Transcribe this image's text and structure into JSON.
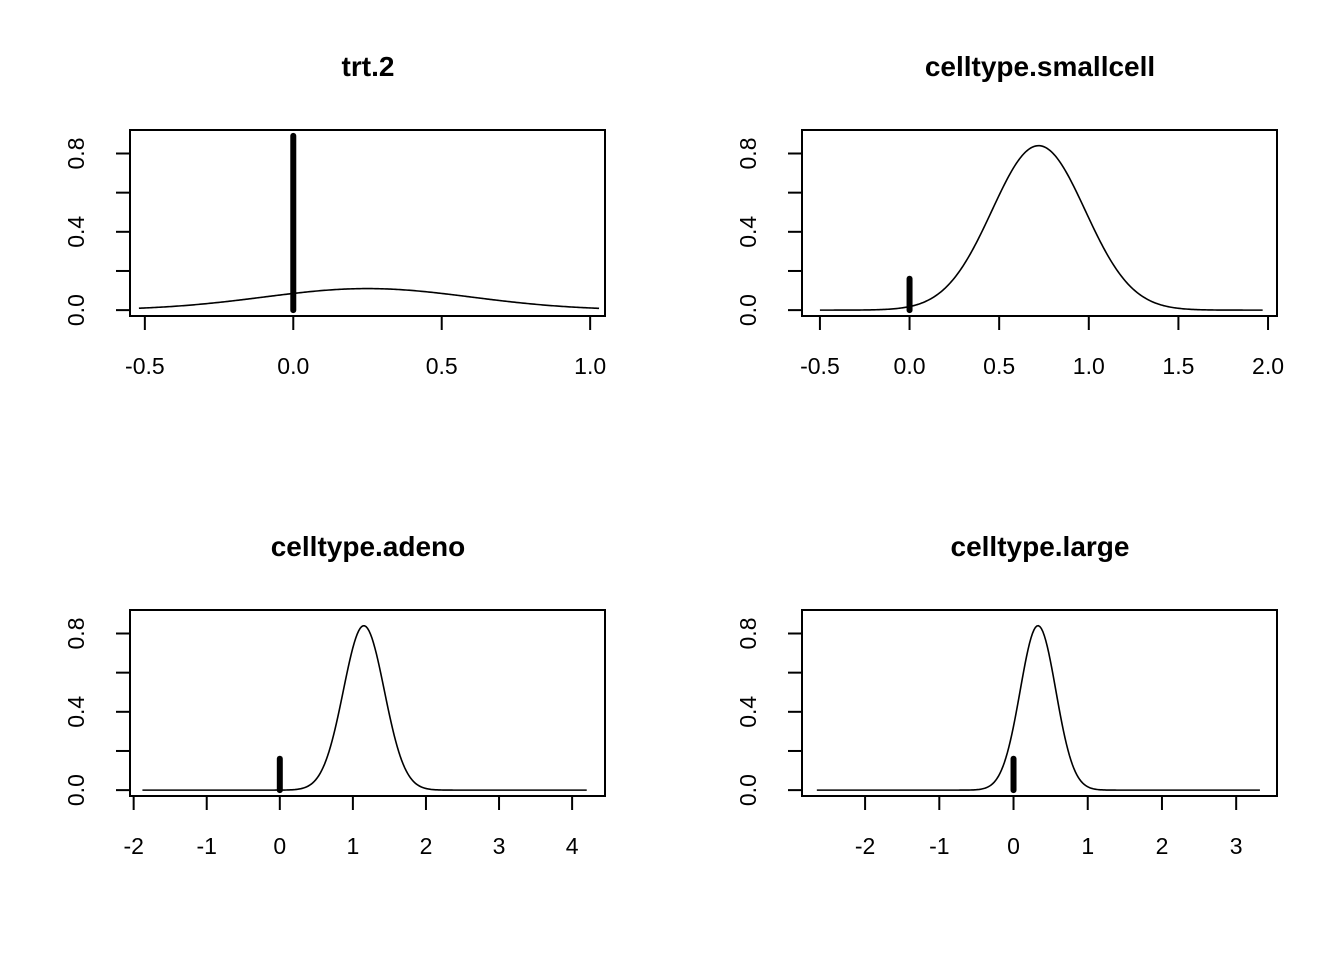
{
  "chart_data": [
    {
      "type": "line",
      "title": "trt.2",
      "xlabel": "",
      "ylabel": "",
      "xlim": [
        -0.55,
        1.05
      ],
      "ylim": [
        -0.03,
        0.92
      ],
      "x_ticks": [
        "-0.5",
        "0.0",
        "0.5",
        "1.0"
      ],
      "x_tick_values": [
        -0.5,
        0.0,
        0.5,
        1.0
      ],
      "y_ticks": [
        "0.0",
        "0.4",
        "0.8"
      ],
      "y_tick_values": [
        0.0,
        0.4,
        0.8
      ],
      "y_minor_ticks": [
        0.2,
        0.6
      ],
      "density": {
        "x_range": [
          -0.52,
          1.03
        ],
        "mean": 0.25,
        "sd": 0.35,
        "peak": 0.11
      },
      "spike": {
        "x": 0.0,
        "height": 0.89
      }
    },
    {
      "type": "line",
      "title": "celltype.smallcell",
      "xlabel": "",
      "ylabel": "",
      "xlim": [
        -0.6,
        2.05
      ],
      "ylim": [
        -0.03,
        0.92
      ],
      "x_ticks": [
        "-0.5",
        "0.0",
        "0.5",
        "1.0",
        "1.5",
        "2.0"
      ],
      "x_tick_values": [
        -0.5,
        0.0,
        0.5,
        1.0,
        1.5,
        2.0
      ],
      "y_ticks": [
        "0.0",
        "0.4",
        "0.8"
      ],
      "y_tick_values": [
        0.0,
        0.4,
        0.8
      ],
      "y_minor_ticks": [
        0.2,
        0.6
      ],
      "density": {
        "x_range": [
          -0.5,
          1.97
        ],
        "mean": 0.72,
        "sd": 0.26,
        "peak": 0.84
      },
      "spike": {
        "x": 0.0,
        "height": 0.16
      }
    },
    {
      "type": "line",
      "title": "celltype.adeno",
      "xlabel": "",
      "ylabel": "",
      "xlim": [
        -2.05,
        4.45
      ],
      "ylim": [
        -0.03,
        0.92
      ],
      "x_ticks": [
        "-2",
        "-1",
        "0",
        "1",
        "2",
        "3",
        "4"
      ],
      "x_tick_values": [
        -2,
        -1,
        0,
        1,
        2,
        3,
        4
      ],
      "y_ticks": [
        "0.0",
        "0.4",
        "0.8"
      ],
      "y_tick_values": [
        0.0,
        0.4,
        0.8
      ],
      "y_minor_ticks": [
        0.2,
        0.6
      ],
      "density": {
        "x_range": [
          -1.88,
          4.2
        ],
        "mean": 1.15,
        "sd": 0.28,
        "peak": 0.84
      },
      "spike": {
        "x": 0.0,
        "height": 0.16
      }
    },
    {
      "type": "line",
      "title": "celltype.large",
      "xlabel": "",
      "ylabel": "",
      "xlim": [
        -2.85,
        3.55
      ],
      "ylim": [
        -0.03,
        0.92
      ],
      "x_ticks": [
        "-2",
        "-1",
        "0",
        "1",
        "2",
        "3"
      ],
      "x_tick_values": [
        -2,
        -1,
        0,
        1,
        2,
        3
      ],
      "y_ticks": [
        "0.0",
        "0.4",
        "0.8"
      ],
      "y_tick_values": [
        0.0,
        0.4,
        0.8
      ],
      "y_minor_ticks": [
        0.2,
        0.6
      ],
      "density": {
        "x_range": [
          -2.65,
          3.32
        ],
        "mean": 0.33,
        "sd": 0.24,
        "peak": 0.84
      },
      "spike": {
        "x": 0.0,
        "height": 0.16
      }
    }
  ]
}
